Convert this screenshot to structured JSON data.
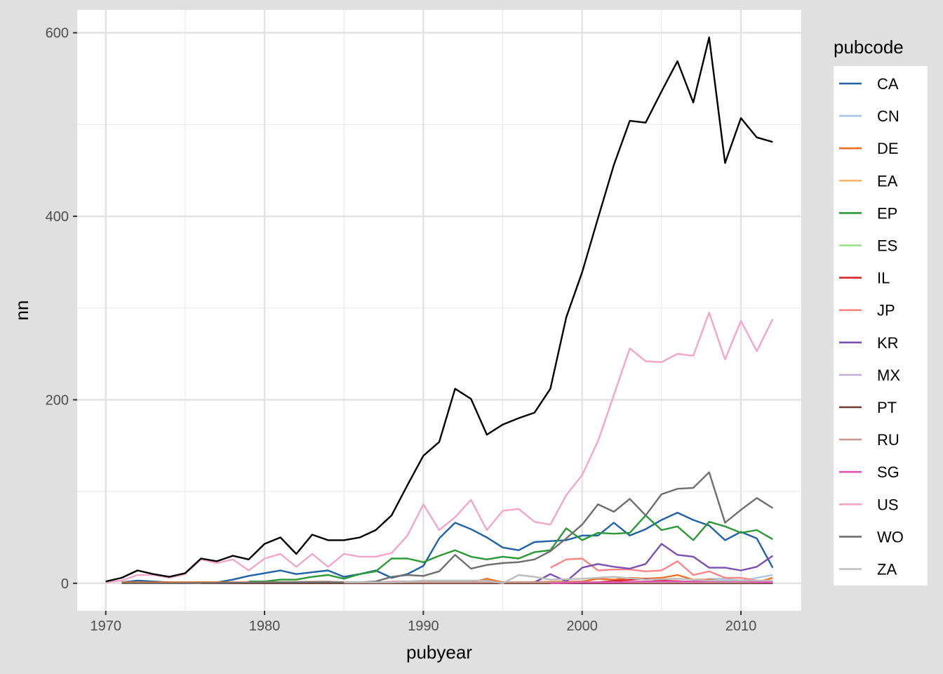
{
  "chart_data": {
    "type": "line",
    "title": "",
    "xlabel": "pubyear",
    "ylabel": "nn",
    "xlim": [
      1968.2,
      2013.8
    ],
    "ylim": [
      -30,
      625
    ],
    "x_ticks": [
      1970,
      1980,
      1990,
      2000,
      2010
    ],
    "y_ticks": [
      0,
      200,
      400,
      600
    ],
    "x_tick_labels": [
      "1970",
      "1980",
      "1990",
      "2000",
      "2010"
    ],
    "y_tick_labels": [
      "0",
      "200",
      "400",
      "600"
    ],
    "grid": true,
    "legend_title": "pubcode",
    "legend_position": "right",
    "total_line": {
      "color": "#000000",
      "x": [
        1970,
        1971,
        1972,
        1973,
        1974,
        1975,
        1976,
        1977,
        1978,
        1979,
        1980,
        1981,
        1982,
        1983,
        1984,
        1985,
        1986,
        1987,
        1988,
        1989,
        1990,
        1991,
        1992,
        1993,
        1994,
        1995,
        1996,
        1997,
        1998,
        1999,
        2000,
        2001,
        2002,
        2003,
        2004,
        2005,
        2006,
        2007,
        2008,
        2009,
        2010,
        2011,
        2012
      ],
      "y": [
        2,
        6,
        14,
        10,
        7,
        11,
        27,
        24,
        30,
        26,
        43,
        50,
        32,
        53,
        47,
        47,
        50,
        58,
        74,
        107,
        139,
        154,
        212,
        201,
        162,
        173,
        180,
        186,
        212,
        290,
        339,
        398,
        456,
        504,
        502,
        536,
        569,
        524,
        595,
        458,
        507,
        486,
        481
      ]
    },
    "series": [
      {
        "name": "CA",
        "color": "#1f62a5",
        "x": [
          1971,
          1972,
          1973,
          1974,
          1975,
          1976,
          1977,
          1978,
          1979,
          1980,
          1981,
          1982,
          1983,
          1984,
          1985,
          1986,
          1987,
          1988,
          1989,
          1990,
          1991,
          1992,
          1993,
          1994,
          1995,
          1996,
          1997,
          1998,
          1999,
          2000,
          2001,
          2002,
          2003,
          2004,
          2005,
          2006,
          2007,
          2008,
          2009,
          2010,
          2011,
          2012
        ],
        "y": [
          1,
          3,
          2,
          1,
          1,
          1,
          1,
          4,
          8,
          11,
          14,
          10,
          12,
          14,
          7,
          10,
          14,
          6,
          10,
          19,
          49,
          66,
          59,
          50,
          39,
          36,
          45,
          46,
          47,
          52,
          52,
          66,
          52,
          59,
          69,
          77,
          69,
          63,
          47,
          56,
          49,
          17
        ]
      },
      {
        "name": "CN",
        "color": "#a8c5e4",
        "x": [
          2005,
          2006,
          2007,
          2008,
          2009,
          2010,
          2011,
          2012
        ],
        "y": [
          1,
          2,
          1,
          5,
          5,
          3,
          6,
          9
        ]
      },
      {
        "name": "DE",
        "color": "#f36f23",
        "x": [
          1971,
          1975,
          1980,
          1985,
          1990,
          1993,
          1994,
          1995,
          2000,
          2001,
          2002,
          2003,
          2004,
          2005,
          2006,
          2007,
          2008,
          2009,
          2010,
          2011,
          2012
        ],
        "y": [
          1,
          1,
          1,
          1,
          1,
          1,
          5,
          1,
          2,
          5,
          4,
          6,
          5,
          6,
          9,
          4,
          4,
          2,
          3,
          1,
          6
        ]
      },
      {
        "name": "EA",
        "color": "#fdb56c",
        "x": [
          2000,
          2005,
          2010,
          2012
        ],
        "y": [
          0,
          1,
          1,
          1
        ]
      },
      {
        "name": "EP",
        "color": "#2a9a36",
        "x": [
          1979,
          1980,
          1981,
          1982,
          1983,
          1984,
          1985,
          1986,
          1987,
          1988,
          1989,
          1990,
          1991,
          1992,
          1993,
          1994,
          1995,
          1996,
          1997,
          1998,
          1999,
          2000,
          2001,
          2002,
          2003,
          2004,
          2005,
          2006,
          2007,
          2008,
          2009,
          2010,
          2011,
          2012
        ],
        "y": [
          2,
          2,
          4,
          4,
          7,
          9,
          5,
          10,
          13,
          27,
          27,
          23,
          30,
          36,
          29,
          26,
          29,
          27,
          34,
          36,
          60,
          47,
          55,
          54,
          55,
          74,
          58,
          62,
          47,
          67,
          62,
          55,
          58,
          48
        ]
      },
      {
        "name": "ES",
        "color": "#98df8a",
        "x": [
          2000,
          2005,
          2010,
          2012
        ],
        "y": [
          0,
          1,
          1,
          0
        ]
      },
      {
        "name": "IL",
        "color": "#d62728",
        "x": [
          1977,
          1980,
          1985,
          1989,
          1990,
          1995,
          1998,
          2000,
          2004,
          2005,
          2008,
          2010,
          2012
        ],
        "y": [
          0,
          1,
          0,
          2,
          0,
          0,
          1,
          0,
          5,
          3,
          1,
          3,
          1
        ]
      },
      {
        "name": "JP",
        "color": "#ff8585",
        "x": [
          1998,
          1999,
          2000,
          2001,
          2002,
          2003,
          2004,
          2005,
          2006,
          2007,
          2008,
          2009,
          2010,
          2011,
          2012
        ],
        "y": [
          17,
          26,
          27,
          14,
          15,
          15,
          13,
          14,
          24,
          9,
          13,
          6,
          6,
          3,
          2
        ]
      },
      {
        "name": "KR",
        "color": "#7b4fb4",
        "x": [
          1997,
          1998,
          1999,
          2000,
          2001,
          2002,
          2003,
          2004,
          2005,
          2006,
          2007,
          2008,
          2009,
          2010,
          2011,
          2012
        ],
        "y": [
          1,
          10,
          2,
          17,
          21,
          18,
          16,
          21,
          43,
          31,
          29,
          17,
          17,
          14,
          18,
          30
        ]
      },
      {
        "name": "MX",
        "color": "#c5b0d5",
        "x": [
          1995,
          2000,
          2005,
          2010,
          2012
        ],
        "y": [
          0,
          1,
          1,
          0,
          1
        ]
      },
      {
        "name": "PT",
        "color": "#6d3a2e",
        "x": [
          1976,
          1980,
          1985,
          1990,
          1995,
          2000,
          2005,
          2010,
          2012
        ],
        "y": [
          0,
          0,
          0,
          0,
          0,
          0,
          0,
          0,
          0
        ]
      },
      {
        "name": "RU",
        "color": "#c49c94",
        "x": [
          1979,
          1984,
          1985,
          1990,
          1995,
          2000,
          2005,
          2010,
          2012
        ],
        "y": [
          1,
          2,
          1,
          1,
          1,
          1,
          1,
          1,
          1
        ]
      },
      {
        "name": "SG",
        "color": "#e055b4",
        "x": [
          1998,
          2000,
          2002,
          2004,
          2006,
          2008,
          2010,
          2012
        ],
        "y": [
          0,
          1,
          1,
          2,
          2,
          2,
          2,
          1
        ]
      },
      {
        "name": "US",
        "color": "#f4a6c8",
        "x": [
          1970,
          1971,
          1972,
          1973,
          1974,
          1975,
          1976,
          1977,
          1978,
          1979,
          1980,
          1981,
          1982,
          1983,
          1984,
          1985,
          1986,
          1987,
          1988,
          1989,
          1990,
          1991,
          1992,
          1993,
          1994,
          1995,
          1996,
          1997,
          1998,
          1999,
          2000,
          2001,
          2002,
          2003,
          2004,
          2005,
          2006,
          2007,
          2008,
          2009,
          2010,
          2011,
          2012
        ],
        "y": [
          1,
          3,
          9,
          9,
          6,
          10,
          26,
          22,
          26,
          14,
          27,
          32,
          18,
          32,
          18,
          32,
          29,
          29,
          33,
          52,
          86,
          58,
          72,
          91,
          58,
          79,
          81,
          67,
          64,
          96,
          118,
          155,
          205,
          256,
          242,
          241,
          250,
          248,
          295,
          244,
          286,
          253,
          288
        ]
      },
      {
        "name": "WO",
        "color": "#6e6e6e",
        "x": [
          1971,
          1975,
          1980,
          1985,
          1986,
          1987,
          1988,
          1989,
          1990,
          1991,
          1992,
          1993,
          1994,
          1995,
          1996,
          1997,
          1998,
          1999,
          2000,
          2001,
          2002,
          2003,
          2004,
          2005,
          2006,
          2007,
          2008,
          2009,
          2010,
          2011,
          2012
        ],
        "y": [
          0,
          0,
          1,
          1,
          1,
          2,
          7,
          9,
          8,
          13,
          31,
          16,
          20,
          22,
          23,
          26,
          35,
          49,
          64,
          86,
          78,
          92,
          74,
          97,
          103,
          104,
          121,
          66,
          80,
          93,
          82
        ]
      },
      {
        "name": "ZA",
        "color": "#bdbdbd",
        "x": [
          1985,
          1988,
          1990,
          1993,
          1994,
          1995,
          1996,
          1997,
          1998,
          2000,
          2002,
          2004,
          2006,
          2008,
          2010,
          2012
        ],
        "y": [
          1,
          1,
          3,
          3,
          3,
          0,
          9,
          7,
          4,
          5,
          7,
          4,
          5,
          3,
          3,
          3
        ]
      }
    ]
  }
}
